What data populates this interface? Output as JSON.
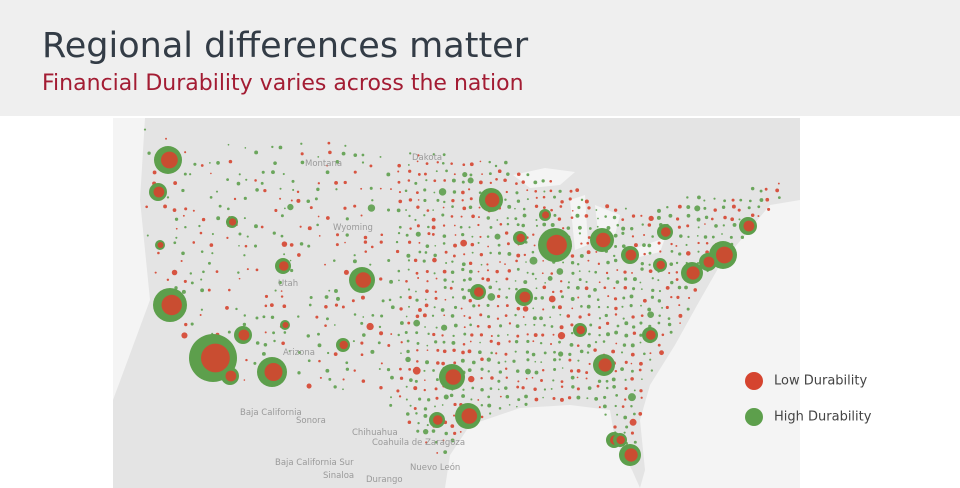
{
  "header": {
    "title": "Regional differences matter",
    "subtitle": "Financial Durability varies across the nation"
  },
  "legend": [
    {
      "label": "Low Durability",
      "color": "#d5442f"
    },
    {
      "label": "High Durability",
      "color": "#5d9f4c"
    }
  ],
  "map_labels": [
    "Montana",
    "Dakota",
    "Wyoming",
    "Utah",
    "Arizona",
    "Baja California",
    "Sonora",
    "Chihuahua",
    "Coahuila de Zaragoza",
    "Nuevo León",
    "Sinaloa",
    "Durango",
    "Baja California Sur"
  ]
}
